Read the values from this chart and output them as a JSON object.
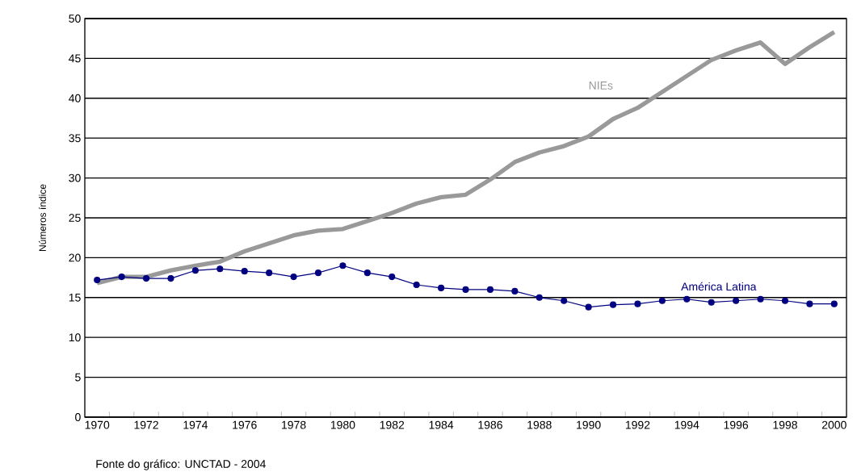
{
  "chart_data": {
    "type": "line",
    "ylabel": "Números índice",
    "x": [
      1970,
      1971,
      1972,
      1973,
      1974,
      1975,
      1976,
      1977,
      1978,
      1979,
      1980,
      1981,
      1982,
      1983,
      1984,
      1985,
      1986,
      1987,
      1988,
      1989,
      1990,
      1991,
      1992,
      1993,
      1994,
      1995,
      1996,
      1997,
      1998,
      1999,
      2000
    ],
    "series": [
      {
        "name": "NIEs",
        "color": "#999999",
        "marker": "none",
        "values": [
          16.8,
          17.6,
          17.6,
          18.4,
          19.0,
          19.5,
          20.8,
          21.8,
          22.8,
          23.4,
          23.6,
          24.6,
          25.6,
          26.8,
          27.6,
          27.9,
          29.8,
          32.0,
          33.2,
          34.0,
          35.2,
          37.4,
          38.8,
          40.8,
          42.8,
          44.8,
          46.0,
          47.0,
          44.3,
          46.4,
          48.3
        ]
      },
      {
        "name": "América Latina",
        "color": "#000080",
        "marker": "circle",
        "values": [
          17.2,
          17.6,
          17.4,
          17.4,
          18.4,
          18.6,
          18.3,
          18.1,
          17.6,
          18.1,
          19.0,
          18.1,
          17.6,
          16.6,
          16.2,
          16.0,
          16.0,
          15.8,
          15.0,
          14.6,
          13.8,
          14.1,
          14.2,
          14.6,
          14.8,
          14.4,
          14.6,
          14.8,
          14.6,
          14.2,
          14.2
        ]
      }
    ],
    "annotations": [
      "Fonte do gráfico: UNCTAD - 2004"
    ],
    "xlim": [
      1969.5,
      2000.5
    ],
    "ylim": [
      0,
      50
    ],
    "xticks": [
      1970,
      1972,
      1974,
      1976,
      1978,
      1980,
      1982,
      1984,
      1986,
      1988,
      1990,
      1992,
      1994,
      1996,
      1998,
      2000
    ],
    "yticks": [
      0,
      5,
      10,
      15,
      20,
      25,
      30,
      35,
      40,
      45,
      50
    ],
    "grid": "y"
  }
}
